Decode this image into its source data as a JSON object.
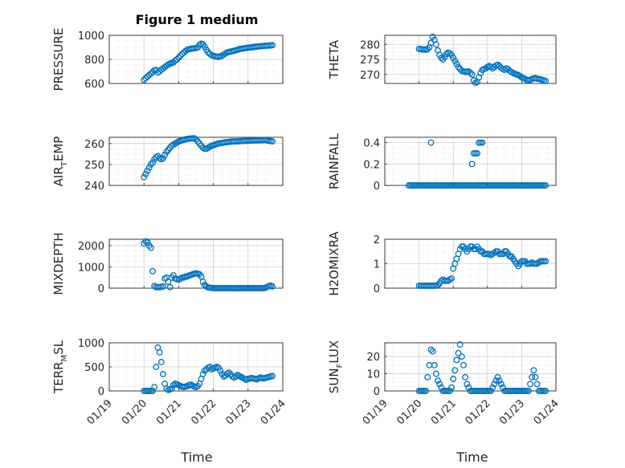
{
  "figure": {
    "title": "Figure 1 medium"
  },
  "chart_data": [
    {
      "type": "scatter",
      "ylabel": "PRESSURE",
      "ylim": [
        600,
        1000
      ],
      "yticks": [
        600,
        800,
        1000
      ],
      "grid": true,
      "x": [
        20.0,
        20.05,
        20.1,
        20.15,
        20.2,
        20.25,
        20.3,
        20.35,
        20.4,
        20.45,
        20.5,
        20.55,
        20.6,
        20.65,
        20.7,
        20.75,
        20.8,
        20.85,
        20.9,
        20.95,
        21.0,
        21.05,
        21.1,
        21.15,
        21.2,
        21.25,
        21.3,
        21.35,
        21.4,
        21.45,
        21.5,
        21.55,
        21.6,
        21.65,
        21.7,
        21.75,
        21.8,
        21.85,
        21.9,
        21.95,
        22.0,
        22.05,
        22.1,
        22.15,
        22.2,
        22.25,
        22.3,
        22.35,
        22.4,
        22.45,
        22.5,
        22.55,
        22.6,
        22.65,
        22.7,
        22.75,
        22.8,
        22.85,
        22.9,
        22.95,
        23.0,
        23.05,
        23.1,
        23.15,
        23.2,
        23.25,
        23.3,
        23.35,
        23.4,
        23.45,
        23.5,
        23.55,
        23.6,
        23.65,
        23.7
      ],
      "y": [
        630,
        645,
        658,
        670,
        682,
        695,
        708,
        712,
        690,
        700,
        715,
        725,
        735,
        748,
        758,
        765,
        770,
        775,
        790,
        800,
        815,
        830,
        845,
        858,
        870,
        880,
        885,
        888,
        890,
        892,
        895,
        900,
        920,
        930,
        925,
        905,
        880,
        860,
        845,
        835,
        830,
        825,
        822,
        820,
        825,
        830,
        840,
        850,
        858,
        862,
        865,
        868,
        872,
        876,
        880,
        885,
        888,
        890,
        893,
        895,
        897,
        899,
        900,
        902,
        905,
        906,
        908,
        909,
        910,
        912,
        913,
        914,
        915,
        916,
        918
      ]
    },
    {
      "type": "scatter",
      "ylabel": "THETA",
      "ylim": [
        267,
        283
      ],
      "yticks": [
        270,
        275,
        280
      ],
      "grid": true,
      "x": [
        20.0,
        20.05,
        20.1,
        20.15,
        20.2,
        20.25,
        20.3,
        20.35,
        20.4,
        20.45,
        20.5,
        20.55,
        20.6,
        20.65,
        20.7,
        20.75,
        20.8,
        20.85,
        20.9,
        20.95,
        21.0,
        21.05,
        21.1,
        21.15,
        21.2,
        21.25,
        21.3,
        21.35,
        21.4,
        21.45,
        21.5,
        21.55,
        21.6,
        21.65,
        21.7,
        21.75,
        21.8,
        21.85,
        21.9,
        21.95,
        22.0,
        22.05,
        22.1,
        22.15,
        22.2,
        22.25,
        22.3,
        22.35,
        22.4,
        22.45,
        22.5,
        22.55,
        22.6,
        22.65,
        22.7,
        22.75,
        22.8,
        22.85,
        22.9,
        22.95,
        23.0,
        23.05,
        23.1,
        23.15,
        23.2,
        23.25,
        23.3,
        23.35,
        23.4,
        23.45,
        23.5,
        23.55,
        23.6,
        23.65,
        23.7
      ],
      "y": [
        278.5,
        278.4,
        278.3,
        278.3,
        278.2,
        278.4,
        279.0,
        280.5,
        282.5,
        281.5,
        280.0,
        278.0,
        276.5,
        275.5,
        275.0,
        275.8,
        276.8,
        277.2,
        277.0,
        276.5,
        275.5,
        274.5,
        273.5,
        272.5,
        271.8,
        271.2,
        271.0,
        270.8,
        270.9,
        271.0,
        270.5,
        270.0,
        268.0,
        267.2,
        267.5,
        269.0,
        270.5,
        271.5,
        271.8,
        272.0,
        272.5,
        272.8,
        272.5,
        272.0,
        272.5,
        273.0,
        273.2,
        272.8,
        272.2,
        271.8,
        271.5,
        272.0,
        271.8,
        271.2,
        270.8,
        270.5,
        270.2,
        270.0,
        269.8,
        269.5,
        269.0,
        268.8,
        268.5,
        268.2,
        268.0,
        268.2,
        268.5,
        268.7,
        268.8,
        268.6,
        268.5,
        268.4,
        268.2,
        268.0,
        267.8
      ]
    },
    {
      "type": "scatter",
      "ylabel": "AIR_TEMP",
      "ylim": [
        240,
        263
      ],
      "yticks": [
        240,
        250,
        260
      ],
      "grid": true,
      "x": [
        20.0,
        20.05,
        20.1,
        20.15,
        20.2,
        20.25,
        20.3,
        20.35,
        20.4,
        20.45,
        20.5,
        20.55,
        20.6,
        20.65,
        20.7,
        20.75,
        20.8,
        20.85,
        20.9,
        20.95,
        21.0,
        21.05,
        21.1,
        21.15,
        21.2,
        21.25,
        21.3,
        21.35,
        21.4,
        21.45,
        21.5,
        21.55,
        21.6,
        21.65,
        21.7,
        21.75,
        21.8,
        21.85,
        21.9,
        21.95,
        22.0,
        22.05,
        22.1,
        22.15,
        22.2,
        22.25,
        22.3,
        22.35,
        22.4,
        22.45,
        22.5,
        22.55,
        22.6,
        22.65,
        22.7,
        22.75,
        22.8,
        22.85,
        22.9,
        22.95,
        23.0,
        23.05,
        23.1,
        23.15,
        23.2,
        23.25,
        23.3,
        23.35,
        23.4,
        23.45,
        23.5,
        23.55,
        23.6,
        23.65,
        23.7
      ],
      "y": [
        244,
        245.5,
        247,
        248.5,
        250,
        251,
        252.5,
        253.5,
        254,
        253,
        252.5,
        253,
        254.5,
        256,
        257,
        258,
        259,
        259.5,
        260,
        260.5,
        261,
        261.3,
        261.6,
        261.8,
        262,
        262.2,
        262.3,
        262.4,
        262.5,
        262.5,
        262,
        261,
        260,
        259,
        258,
        257.5,
        257.5,
        258,
        258.5,
        259,
        259.2,
        259.5,
        259.8,
        260,
        260.2,
        260.3,
        260.5,
        260.6,
        260.7,
        260.8,
        260.9,
        261,
        261,
        261,
        261.1,
        261.1,
        261.2,
        261.2,
        261.3,
        261.3,
        261.3,
        261.4,
        261.4,
        261.5,
        261.5,
        261.5,
        261.6,
        261.6,
        261.6,
        261.7,
        261.7,
        261.5,
        261.3,
        261.2,
        261
      ]
    },
    {
      "type": "scatter",
      "ylabel": "RAINFALL",
      "ylim": [
        0,
        0.45
      ],
      "yticks": [
        0,
        0.2,
        0.4
      ],
      "grid": true,
      "x": [
        19.7,
        19.75,
        19.8,
        19.85,
        19.9,
        19.95,
        20.0,
        20.05,
        20.1,
        20.15,
        20.2,
        20.25,
        20.3,
        20.35,
        20.4,
        20.45,
        20.5,
        20.55,
        20.6,
        20.65,
        20.7,
        20.75,
        20.8,
        20.85,
        20.9,
        20.95,
        21.0,
        21.05,
        21.1,
        21.15,
        21.2,
        21.25,
        21.3,
        21.35,
        21.4,
        21.45,
        21.5,
        21.55,
        21.6,
        21.65,
        21.7,
        21.75,
        21.8,
        21.85,
        21.9,
        21.95,
        22.0,
        22.05,
        22.1,
        22.15,
        22.2,
        22.25,
        22.3,
        22.35,
        22.4,
        22.45,
        22.5,
        22.55,
        22.6,
        22.65,
        22.7,
        22.75,
        22.8,
        22.85,
        22.9,
        22.95,
        23.0,
        23.05,
        23.1,
        23.15,
        23.2,
        23.25,
        23.3,
        23.35,
        23.4,
        23.45,
        23.5,
        23.55,
        23.6,
        23.65,
        23.7,
        20.35,
        21.55,
        21.6,
        21.65,
        21.7,
        21.75,
        21.8,
        21.85
      ],
      "y": [
        0,
        0,
        0,
        0,
        0,
        0,
        0,
        0,
        0,
        0,
        0,
        0,
        0,
        0,
        0,
        0,
        0,
        0,
        0,
        0,
        0,
        0,
        0,
        0,
        0,
        0,
        0,
        0,
        0,
        0,
        0,
        0,
        0,
        0,
        0,
        0,
        0,
        0,
        0,
        0,
        0,
        0,
        0,
        0,
        0,
        0,
        0,
        0,
        0,
        0,
        0,
        0,
        0,
        0,
        0,
        0,
        0,
        0,
        0,
        0,
        0,
        0,
        0,
        0,
        0,
        0,
        0,
        0,
        0,
        0,
        0,
        0,
        0,
        0,
        0,
        0,
        0,
        0,
        0,
        0,
        0,
        0.4,
        0.2,
        0.3,
        0.3,
        0.3,
        0.4,
        0.4,
        0.4
      ]
    },
    {
      "type": "scatter",
      "ylabel": "MIXDEPTH",
      "ylim": [
        0,
        2300
      ],
      "yticks": [
        0,
        1000,
        2000
      ],
      "grid": true,
      "x": [
        20.0,
        20.05,
        20.1,
        20.15,
        20.2,
        20.25,
        20.3,
        20.35,
        20.4,
        20.45,
        20.5,
        20.55,
        20.6,
        20.65,
        20.7,
        20.75,
        20.8,
        20.85,
        20.9,
        20.95,
        21.0,
        21.05,
        21.1,
        21.15,
        21.2,
        21.25,
        21.3,
        21.35,
        21.4,
        21.45,
        21.5,
        21.55,
        21.6,
        21.65,
        21.7,
        21.75,
        21.8,
        21.85,
        21.9,
        21.95,
        22.0,
        22.05,
        22.1,
        22.15,
        22.2,
        22.25,
        22.3,
        22.35,
        22.4,
        22.45,
        22.5,
        22.55,
        22.6,
        22.65,
        22.7,
        22.75,
        22.8,
        22.85,
        22.9,
        22.95,
        23.0,
        23.05,
        23.1,
        23.15,
        23.2,
        23.25,
        23.3,
        23.35,
        23.4,
        23.45,
        23.5,
        23.55,
        23.6,
        23.65,
        23.7
      ],
      "y": [
        2100,
        2200,
        2150,
        2000,
        1900,
        800,
        100,
        50,
        50,
        50,
        60,
        80,
        450,
        500,
        300,
        50,
        500,
        600,
        450,
        420,
        400,
        450,
        500,
        500,
        550,
        550,
        600,
        620,
        650,
        680,
        700,
        680,
        650,
        550,
        300,
        150,
        80,
        40,
        20,
        10,
        0,
        0,
        0,
        0,
        0,
        0,
        0,
        0,
        0,
        0,
        0,
        0,
        0,
        0,
        0,
        0,
        0,
        0,
        0,
        0,
        0,
        0,
        0,
        0,
        0,
        0,
        0,
        0,
        0,
        0,
        20,
        60,
        100,
        120,
        80
      ]
    },
    {
      "type": "scatter",
      "ylabel": "H2OMIXRA",
      "ylim": [
        0,
        2
      ],
      "yticks": [
        0,
        1,
        2
      ],
      "grid": true,
      "x": [
        20.0,
        20.05,
        20.1,
        20.15,
        20.2,
        20.25,
        20.3,
        20.35,
        20.4,
        20.45,
        20.5,
        20.55,
        20.6,
        20.65,
        20.7,
        20.75,
        20.8,
        20.85,
        20.9,
        20.95,
        21.0,
        21.05,
        21.1,
        21.15,
        21.2,
        21.25,
        21.3,
        21.35,
        21.4,
        21.45,
        21.5,
        21.55,
        21.6,
        21.65,
        21.7,
        21.75,
        21.8,
        21.85,
        21.9,
        21.95,
        22.0,
        22.05,
        22.1,
        22.15,
        22.2,
        22.25,
        22.3,
        22.35,
        22.4,
        22.45,
        22.5,
        22.55,
        22.6,
        22.65,
        22.7,
        22.75,
        22.8,
        22.85,
        22.9,
        22.95,
        23.0,
        23.05,
        23.1,
        23.15,
        23.2,
        23.25,
        23.3,
        23.35,
        23.4,
        23.45,
        23.5,
        23.55,
        23.6,
        23.65,
        23.7
      ],
      "y": [
        0.1,
        0.1,
        0.1,
        0.1,
        0.1,
        0.1,
        0.1,
        0.1,
        0.1,
        0.1,
        0.1,
        0.12,
        0.2,
        0.3,
        0.35,
        0.3,
        0.3,
        0.3,
        0.35,
        0.4,
        0.8,
        1.0,
        1.2,
        1.4,
        1.6,
        1.7,
        1.7,
        1.6,
        1.5,
        1.6,
        1.7,
        1.7,
        1.6,
        1.6,
        1.7,
        1.6,
        1.5,
        1.5,
        1.4,
        1.4,
        1.4,
        1.4,
        1.35,
        1.4,
        1.45,
        1.5,
        1.5,
        1.4,
        1.4,
        1.4,
        1.5,
        1.5,
        1.4,
        1.3,
        1.3,
        1.2,
        1.1,
        1.0,
        0.9,
        1.0,
        1.1,
        1.1,
        1.1,
        1.0,
        1.0,
        1.0,
        1.05,
        1.0,
        1.0,
        1.0,
        1.05,
        1.1,
        1.1,
        1.1,
        1.1
      ]
    },
    {
      "type": "scatter",
      "ylabel": "TERR_MSL",
      "ylim": [
        0,
        1000
      ],
      "yticks": [
        0,
        500,
        1000
      ],
      "grid": true,
      "x": [
        20.0,
        20.05,
        20.1,
        20.15,
        20.2,
        20.25,
        20.3,
        20.35,
        20.4,
        20.45,
        20.5,
        20.55,
        20.6,
        20.65,
        20.7,
        20.75,
        20.8,
        20.85,
        20.9,
        20.95,
        21.0,
        21.05,
        21.1,
        21.15,
        21.2,
        21.25,
        21.3,
        21.35,
        21.4,
        21.45,
        21.5,
        21.55,
        21.6,
        21.65,
        21.7,
        21.75,
        21.8,
        21.85,
        21.9,
        21.95,
        22.0,
        22.05,
        22.1,
        22.15,
        22.2,
        22.25,
        22.3,
        22.35,
        22.4,
        22.45,
        22.5,
        22.55,
        22.6,
        22.65,
        22.7,
        22.75,
        22.8,
        22.85,
        22.9,
        22.95,
        23.0,
        23.05,
        23.1,
        23.15,
        23.2,
        23.25,
        23.3,
        23.35,
        23.4,
        23.45,
        23.5,
        23.55,
        23.6,
        23.65,
        23.7
      ],
      "y": [
        0,
        0,
        0,
        0,
        0,
        0,
        80,
        500,
        900,
        800,
        600,
        350,
        150,
        50,
        20,
        30,
        50,
        120,
        150,
        140,
        120,
        100,
        90,
        80,
        90,
        100,
        120,
        130,
        110,
        90,
        80,
        100,
        150,
        250,
        350,
        420,
        450,
        480,
        500,
        450,
        470,
        480,
        500,
        480,
        420,
        350,
        300,
        320,
        360,
        380,
        340,
        300,
        280,
        300,
        330,
        310,
        290,
        270,
        250,
        230,
        250,
        260,
        270,
        260,
        250,
        240,
        260,
        280,
        270,
        260,
        270,
        280,
        290,
        300,
        310
      ]
    },
    {
      "type": "scatter",
      "ylabel": "SUN_FLUX",
      "ylim": [
        0,
        28
      ],
      "yticks": [
        0,
        10,
        20
      ],
      "grid": true,
      "x": [
        20.0,
        20.05,
        20.1,
        20.15,
        20.2,
        20.25,
        20.3,
        20.35,
        20.4,
        20.45,
        20.5,
        20.55,
        20.6,
        20.65,
        20.7,
        20.75,
        20.8,
        20.85,
        20.9,
        20.95,
        21.0,
        21.05,
        21.1,
        21.15,
        21.2,
        21.25,
        21.3,
        21.35,
        21.4,
        21.45,
        21.5,
        21.55,
        21.6,
        21.65,
        21.7,
        21.75,
        21.8,
        21.85,
        21.9,
        21.95,
        22.0,
        22.05,
        22.1,
        22.15,
        22.2,
        22.25,
        22.3,
        22.35,
        22.4,
        22.45,
        22.5,
        22.55,
        22.6,
        22.65,
        22.7,
        22.75,
        22.8,
        22.85,
        22.9,
        22.95,
        23.0,
        23.05,
        23.1,
        23.15,
        23.2,
        23.25,
        23.3,
        23.35,
        23.4,
        23.45,
        23.5,
        23.55,
        23.6,
        23.65,
        23.7
      ],
      "y": [
        0,
        0,
        0,
        0,
        0,
        8,
        15,
        24,
        23,
        15,
        10,
        6,
        4,
        2,
        0,
        0,
        0,
        0,
        0,
        2,
        7,
        12,
        18,
        22,
        27,
        20,
        15,
        8,
        4,
        2,
        0,
        0,
        0,
        0,
        0,
        0,
        0,
        0,
        0,
        0,
        0,
        0,
        0,
        2,
        4,
        6,
        8,
        6,
        4,
        2,
        0,
        0,
        0,
        0,
        0,
        0,
        0,
        0,
        0,
        0,
        0,
        0,
        0,
        0,
        0,
        4,
        8,
        12,
        8,
        4,
        0,
        0,
        0,
        0,
        0
      ]
    }
  ],
  "xaxis": {
    "label": "Time",
    "ticks": [
      19,
      20,
      21,
      22,
      23,
      24
    ],
    "tick_labels": [
      "01/19",
      "01/20",
      "01/21",
      "01/22",
      "01/23",
      "01/24"
    ]
  },
  "colors": {
    "marker": "#0072BD",
    "axes": "#262626",
    "grid": "#d9d9d9"
  }
}
